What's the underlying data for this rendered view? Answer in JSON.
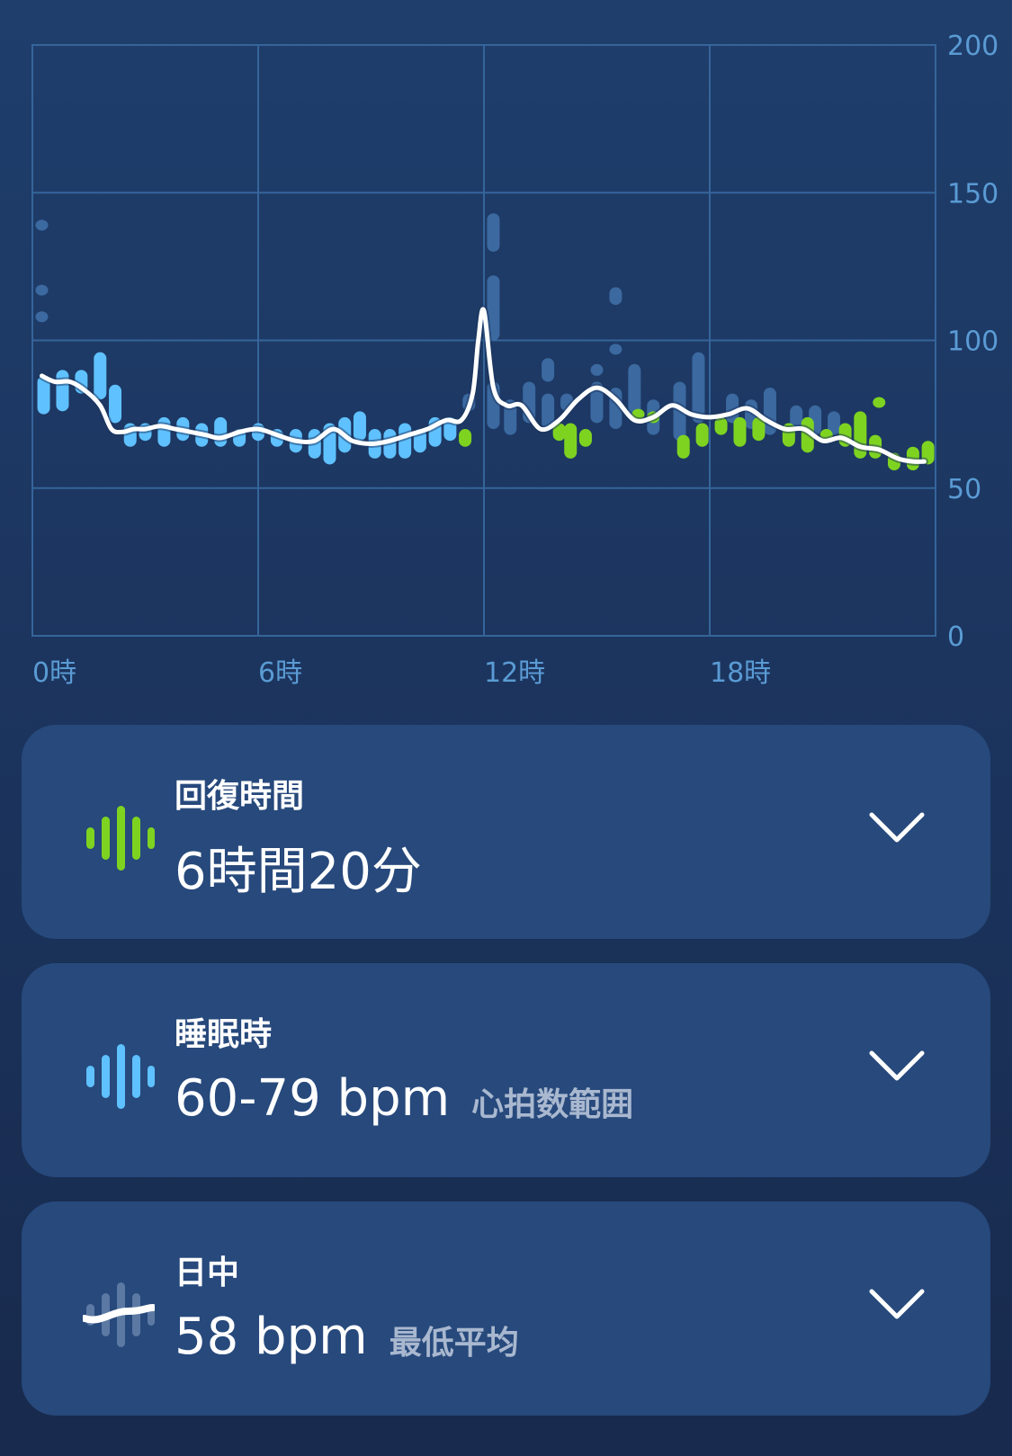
{
  "chart_data": {
    "type": "line",
    "x_ticks": [
      "0時",
      "6時",
      "12時",
      "18時"
    ],
    "y_ticks": [
      "200",
      "150",
      "100",
      "50",
      "0"
    ],
    "xlim": [
      0,
      24
    ],
    "ylim": [
      0,
      200
    ],
    "grid": true,
    "y_axis_side": "right",
    "colors": {
      "line": "#ffffff",
      "sleep_bar": "#5fc1ff",
      "recovery_bar": "#7ed321",
      "faint_bar": "#3f6fa6"
    },
    "average_line": {
      "x": [
        0.25,
        0.6,
        1.0,
        1.4,
        1.8,
        2.1,
        2.4,
        2.7,
        3.0,
        3.4,
        3.8,
        4.2,
        4.6,
        5.0,
        5.5,
        6.0,
        6.5,
        7.0,
        7.5,
        8.0,
        8.5,
        9.0,
        9.5,
        10.0,
        10.5,
        11.0,
        11.4,
        11.7,
        11.85,
        12.0,
        12.25,
        12.6,
        13.0,
        13.5,
        14.0,
        14.5,
        15.0,
        15.5,
        16.0,
        16.5,
        17.0,
        17.5,
        18.0,
        18.5,
        19.0,
        19.5,
        20.0,
        20.5,
        21.0,
        21.5,
        22.0,
        22.5,
        23.0,
        23.4,
        23.7
      ],
      "y": [
        88,
        86,
        86,
        83,
        78,
        70,
        69,
        70,
        70,
        71,
        70,
        69,
        68,
        67,
        69,
        70,
        68,
        66,
        66,
        70,
        66,
        65,
        66,
        68,
        70,
        73,
        73,
        82,
        100,
        110,
        84,
        78,
        78,
        70,
        73,
        80,
        84,
        80,
        73,
        74,
        78,
        75,
        74,
        75,
        77,
        73,
        70,
        70,
        66,
        67,
        64,
        63,
        60,
        59,
        59
      ]
    },
    "sleep_bars": [
      {
        "x": 0.3,
        "low": 75,
        "high": 88
      },
      {
        "x": 0.8,
        "low": 76,
        "high": 90
      },
      {
        "x": 1.3,
        "low": 82,
        "high": 90
      },
      {
        "x": 1.8,
        "low": 80,
        "high": 96
      },
      {
        "x": 2.2,
        "low": 72,
        "high": 85
      },
      {
        "x": 2.6,
        "low": 64,
        "high": 72
      },
      {
        "x": 3.0,
        "low": 66,
        "high": 72
      },
      {
        "x": 3.5,
        "low": 64,
        "high": 74
      },
      {
        "x": 4.0,
        "low": 66,
        "high": 74
      },
      {
        "x": 4.5,
        "low": 64,
        "high": 72
      },
      {
        "x": 5.0,
        "low": 64,
        "high": 74
      },
      {
        "x": 5.5,
        "low": 64,
        "high": 70
      },
      {
        "x": 6.0,
        "low": 66,
        "high": 72
      },
      {
        "x": 6.5,
        "low": 64,
        "high": 70
      },
      {
        "x": 7.0,
        "low": 62,
        "high": 70
      },
      {
        "x": 7.5,
        "low": 60,
        "high": 70
      },
      {
        "x": 7.9,
        "low": 58,
        "high": 72
      },
      {
        "x": 8.3,
        "low": 62,
        "high": 74
      },
      {
        "x": 8.7,
        "low": 66,
        "high": 76
      },
      {
        "x": 9.1,
        "low": 60,
        "high": 70
      },
      {
        "x": 9.5,
        "low": 60,
        "high": 70
      },
      {
        "x": 9.9,
        "low": 60,
        "high": 72
      },
      {
        "x": 10.3,
        "low": 62,
        "high": 70
      },
      {
        "x": 10.7,
        "low": 64,
        "high": 74
      },
      {
        "x": 11.1,
        "low": 66,
        "high": 74
      }
    ],
    "recovery_bars": [
      {
        "x": 11.5,
        "low": 64,
        "high": 70
      },
      {
        "x": 14.0,
        "low": 66,
        "high": 72
      },
      {
        "x": 14.3,
        "low": 60,
        "high": 72
      },
      {
        "x": 14.7,
        "low": 64,
        "high": 70
      },
      {
        "x": 16.1,
        "low": 74,
        "high": 76
      },
      {
        "x": 16.5,
        "low": 72,
        "high": 76
      },
      {
        "x": 17.3,
        "low": 60,
        "high": 68
      },
      {
        "x": 17.8,
        "low": 64,
        "high": 72
      },
      {
        "x": 18.3,
        "low": 68,
        "high": 74
      },
      {
        "x": 18.8,
        "low": 64,
        "high": 74
      },
      {
        "x": 19.3,
        "low": 66,
        "high": 74
      },
      {
        "x": 20.1,
        "low": 64,
        "high": 72
      },
      {
        "x": 20.6,
        "low": 62,
        "high": 74
      },
      {
        "x": 21.1,
        "low": 66,
        "high": 70
      },
      {
        "x": 21.6,
        "low": 64,
        "high": 72
      },
      {
        "x": 22.0,
        "low": 60,
        "high": 76
      },
      {
        "x": 22.4,
        "low": 60,
        "high": 68
      },
      {
        "x": 22.5,
        "low": 78,
        "high": 80
      },
      {
        "x": 22.9,
        "low": 56,
        "high": 62
      },
      {
        "x": 23.4,
        "low": 56,
        "high": 64
      },
      {
        "x": 23.8,
        "low": 58,
        "high": 66
      }
    ],
    "faint_bars": [
      {
        "x": 0.25,
        "low": 138,
        "high": 140
      },
      {
        "x": 0.25,
        "low": 116,
        "high": 118
      },
      {
        "x": 0.25,
        "low": 107,
        "high": 109
      },
      {
        "x": 11.6,
        "low": 76,
        "high": 82
      },
      {
        "x": 12.25,
        "low": 70,
        "high": 86
      },
      {
        "x": 12.25,
        "low": 100,
        "high": 122
      },
      {
        "x": 12.25,
        "low": 130,
        "high": 143
      },
      {
        "x": 12.7,
        "low": 68,
        "high": 80
      },
      {
        "x": 13.2,
        "low": 72,
        "high": 86
      },
      {
        "x": 13.7,
        "low": 70,
        "high": 82
      },
      {
        "x": 13.7,
        "low": 86,
        "high": 94
      },
      {
        "x": 14.2,
        "low": 76,
        "high": 82
      },
      {
        "x": 15.0,
        "low": 72,
        "high": 86
      },
      {
        "x": 15.0,
        "low": 88,
        "high": 92
      },
      {
        "x": 15.5,
        "low": 70,
        "high": 84
      },
      {
        "x": 15.5,
        "low": 112,
        "high": 118
      },
      {
        "x": 15.5,
        "low": 96,
        "high": 98
      },
      {
        "x": 16.0,
        "low": 74,
        "high": 92
      },
      {
        "x": 16.5,
        "low": 68,
        "high": 80
      },
      {
        "x": 17.2,
        "low": 66,
        "high": 86
      },
      {
        "x": 17.7,
        "low": 72,
        "high": 96
      },
      {
        "x": 18.6,
        "low": 72,
        "high": 82
      },
      {
        "x": 19.1,
        "low": 70,
        "high": 80
      },
      {
        "x": 19.6,
        "low": 68,
        "high": 84
      },
      {
        "x": 20.3,
        "low": 70,
        "high": 78
      },
      {
        "x": 20.8,
        "low": 68,
        "high": 78
      },
      {
        "x": 21.3,
        "low": 68,
        "high": 76
      }
    ]
  },
  "cards": [
    {
      "title": "回復時間",
      "value": "6時間20分",
      "sub": "",
      "icon": "recovery-bars-icon"
    },
    {
      "title": "睡眠時",
      "value": "60-79 bpm",
      "sub": "心拍数範囲",
      "icon": "sleep-bars-icon"
    },
    {
      "title": "日中",
      "value": "58 bpm",
      "sub": "最低平均",
      "icon": "daytime-line-icon"
    }
  ]
}
